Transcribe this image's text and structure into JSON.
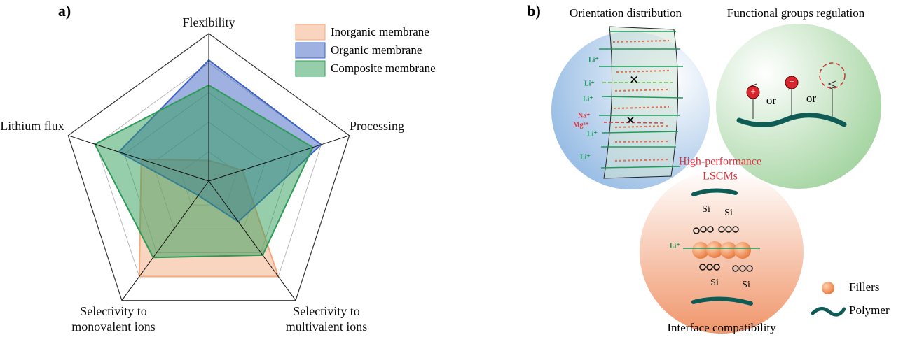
{
  "chart_data": {
    "type": "radar",
    "panel_label": "a)",
    "categories": [
      "Flexibility",
      "Processing",
      "Selectivity to multivalent ions",
      "Selectivity to monovalent ions",
      "Lithium flux"
    ],
    "series": [
      {
        "name": "Inorganic membrane",
        "color": "#f4a97f",
        "values": [
          0.7,
          1.2,
          4.0,
          4.0,
          2.4
        ]
      },
      {
        "name": "Organic membrane",
        "color": "#3f63c4",
        "values": [
          4.1,
          4.0,
          1.7,
          0.6,
          3.2
        ]
      },
      {
        "name": "Composite membrane",
        "color": "#2e9c58",
        "values": [
          3.25,
          3.7,
          3.1,
          3.2,
          4.05
        ]
      }
    ],
    "rlim": [
      0,
      5
    ],
    "grid_rings": 5,
    "legend": "upper right"
  },
  "diagram": {
    "panel_label": "b)",
    "regions": [
      {
        "title": "Orientation distribution"
      },
      {
        "title": "Functional groups regulation"
      },
      {
        "title": "Interface compatibility"
      }
    ],
    "center_label": [
      "High-performance",
      "LSCMs"
    ],
    "ions": {
      "lithium": "Li⁺",
      "sodium": "Na⁺",
      "magnesium": "Mg²⁺"
    },
    "connector": "or",
    "silicon": "Si",
    "legend": [
      "Fillers",
      "Polymer"
    ]
  }
}
